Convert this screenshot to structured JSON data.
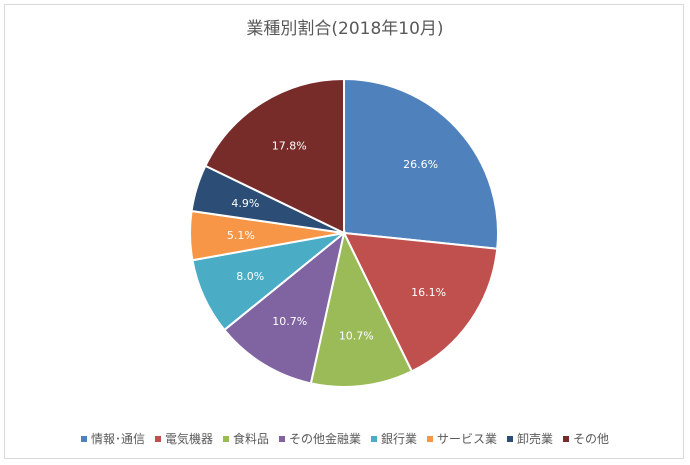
{
  "chart_data": {
    "type": "pie",
    "title": "業種別割合(2018年10月)",
    "categories": [
      "情報･通信",
      "電気機器",
      "食料品",
      "その他金融業",
      "銀行業",
      "サービス業",
      "卸売業",
      "その他"
    ],
    "values": [
      26.6,
      16.1,
      10.7,
      10.7,
      8.0,
      5.1,
      4.9,
      17.8
    ],
    "labels": [
      "26.6%",
      "16.1%",
      "10.7%",
      "10.7%",
      "8.0%",
      "5.1%",
      "4.9%",
      "17.8%"
    ],
    "colors": [
      "#4f81bd",
      "#c0504d",
      "#9bbb59",
      "#8064a2",
      "#4bacc6",
      "#f79646",
      "#2c4d75",
      "#772c2a"
    ],
    "legend_position": "bottom"
  }
}
